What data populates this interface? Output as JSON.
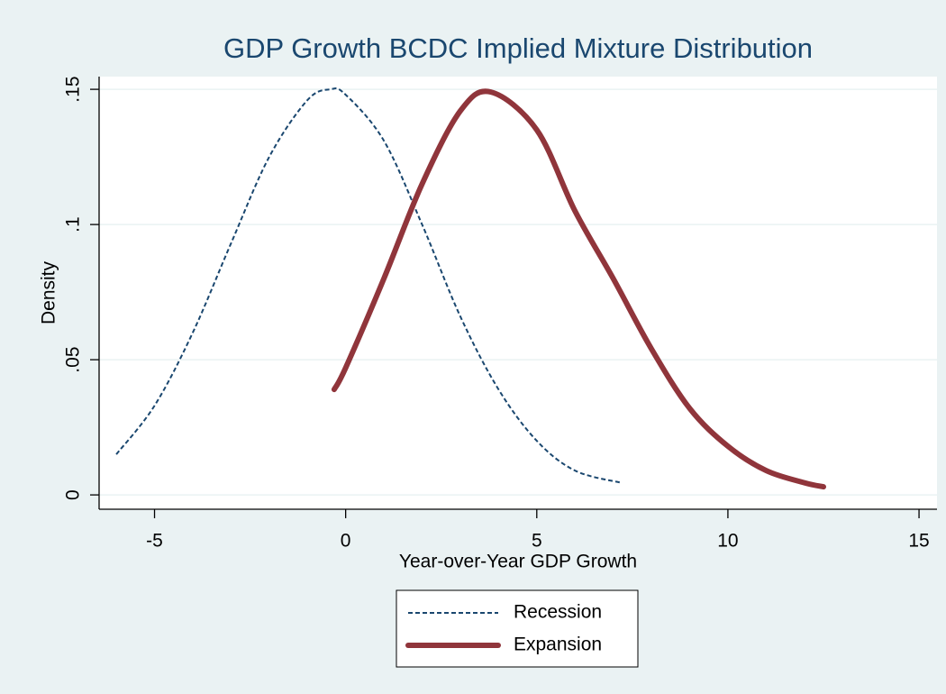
{
  "chart_data": {
    "type": "line",
    "title": "GDP Growth BCDC Implied Mixture Distribution",
    "x_label": "Year-over-Year GDP Growth",
    "y_label": "Density",
    "series": [
      {
        "name": "Recession",
        "color": "#1a476f",
        "style": "dashed",
        "x": [
          -6,
          -5,
          -4,
          -3,
          -2,
          -1,
          -0.4,
          0,
          1,
          2,
          3,
          4,
          5,
          6,
          7.2
        ],
        "values": [
          0.015,
          0.033,
          0.06,
          0.093,
          0.125,
          0.146,
          0.15,
          0.148,
          0.131,
          0.1,
          0.066,
          0.039,
          0.02,
          0.009,
          0.0045
        ]
      },
      {
        "name": "Expansion",
        "color": "#90353b",
        "style": "solid",
        "x": [
          -0.3,
          0,
          1,
          2,
          3,
          3.8,
          5,
          6,
          7,
          8,
          9,
          10,
          11,
          12,
          12.5
        ],
        "values": [
          0.039,
          0.047,
          0.08,
          0.115,
          0.142,
          0.149,
          0.135,
          0.105,
          0.08,
          0.054,
          0.032,
          0.018,
          0.009,
          0.0045,
          0.003
        ]
      }
    ],
    "xlim": [
      -6.45,
      15.47
    ],
    "xticks": [
      -5,
      0,
      5,
      10,
      15
    ],
    "ylim": [
      -0.0053,
      0.1547
    ],
    "yticks": [
      0,
      {
        "value": 0.05,
        "label": ".05"
      },
      {
        "value": 0.1,
        "label": ".1"
      },
      {
        "value": 0.15,
        "label": ".15"
      }
    ],
    "grid": true,
    "legend": "bottom"
  }
}
